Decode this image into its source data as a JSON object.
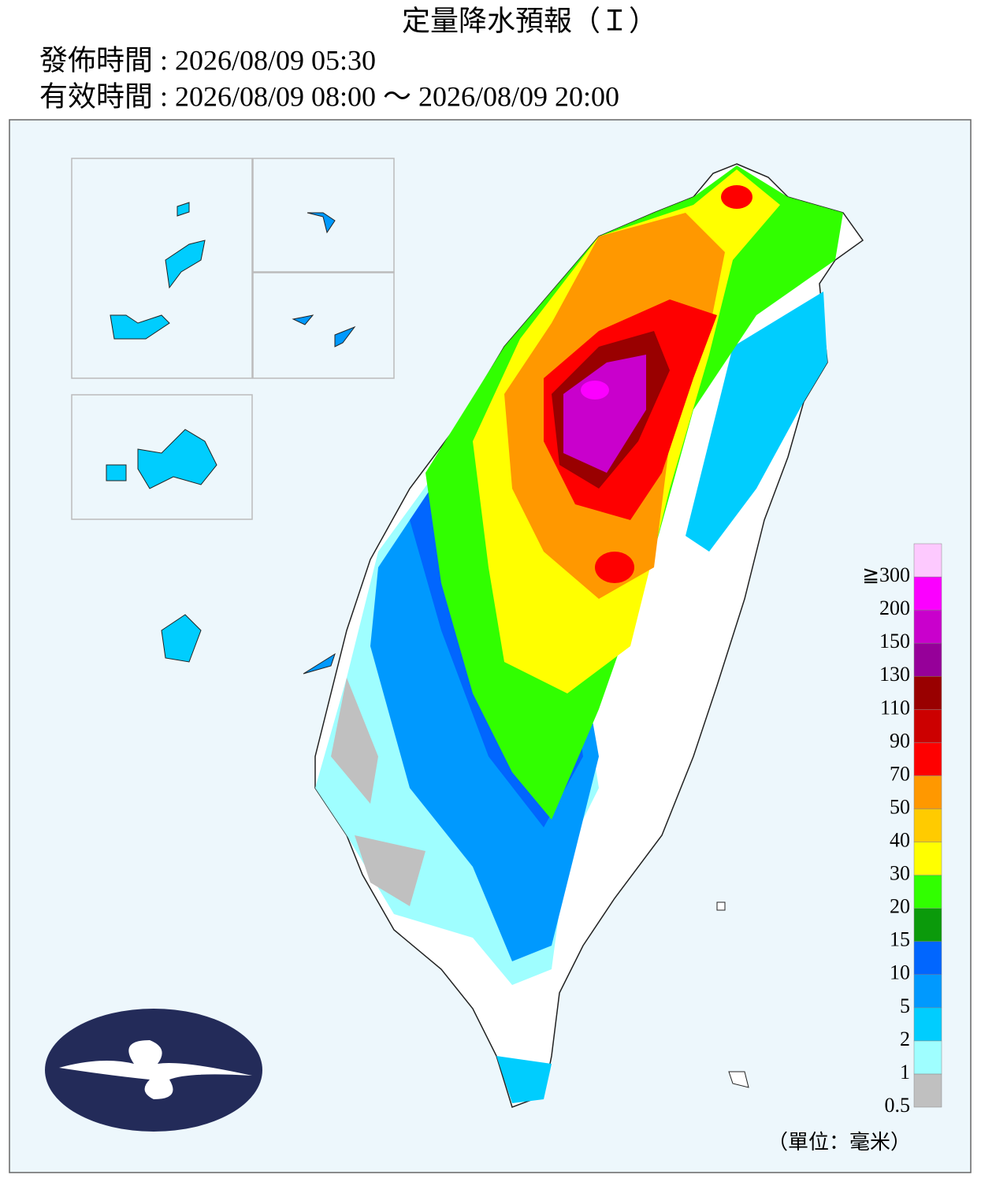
{
  "header": {
    "title": "定量降水預報（Ｉ）",
    "issued": "發佈時間 : 2026/08/09 05:30",
    "valid": "有效時間 : 2026/08/09 08:00 ～ 2026/08/09 20:00"
  },
  "legend": {
    "unit": "（單位：毫米）",
    "items": [
      {
        "label": "0.5",
        "color": "#c0c0c0"
      },
      {
        "label": "1",
        "color": "#9ffeff"
      },
      {
        "label": "2",
        "color": "#00cdfe"
      },
      {
        "label": "5",
        "color": "#0099fe"
      },
      {
        "label": "10",
        "color": "#0166fe"
      },
      {
        "label": "15",
        "color": "#0b9a0b"
      },
      {
        "label": "20",
        "color": "#31ff00"
      },
      {
        "label": "30",
        "color": "#ffff00"
      },
      {
        "label": "40",
        "color": "#ffcb00"
      },
      {
        "label": "50",
        "color": "#ff9800"
      },
      {
        "label": "70",
        "color": "#fe0000"
      },
      {
        "label": "90",
        "color": "#cc0000"
      },
      {
        "label": "110",
        "color": "#990000"
      },
      {
        "label": "130",
        "color": "#960099"
      },
      {
        "label": "150",
        "color": "#c900cc"
      },
      {
        "label": "200",
        "color": "#fb00ff"
      },
      {
        "label": "≧300",
        "color": "#fdc9fe"
      }
    ]
  }
}
